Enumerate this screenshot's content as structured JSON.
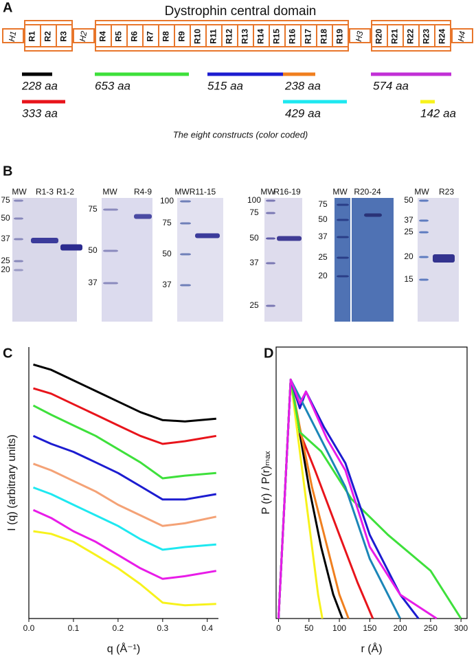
{
  "panel_labels": [
    "A",
    "B",
    "C",
    "D"
  ],
  "panel_a": {
    "title": "Dystrophin central domain",
    "domains": [
      "H1",
      "R1",
      "R2",
      "R3",
      "H2",
      "R4",
      "R5",
      "R6",
      "R7",
      "R8",
      "R9",
      "R10",
      "R11",
      "R12",
      "R13",
      "R14",
      "R15",
      "R16",
      "R17",
      "R18",
      "R19",
      "H3",
      "R20",
      "R21",
      "R22",
      "R23",
      "R24",
      "H4"
    ],
    "constructs": [
      {
        "label": "228 aa",
        "color": "#000000"
      },
      {
        "label": "333 aa",
        "color": "#e8141b"
      },
      {
        "label": "653 aa",
        "color": "#3ee03b"
      },
      {
        "label": "515 aa",
        "color": "#1c1cd0"
      },
      {
        "label": "238 aa",
        "color": "#f07f1e"
      },
      {
        "label": "429 aa",
        "color": "#1ee8f0"
      },
      {
        "label": "574 aa",
        "color": "#c12fd6"
      },
      {
        "label": "142 aa",
        "color": "#f7f21c"
      }
    ],
    "caption": "The eight constructs (color coded)"
  },
  "panel_b": {
    "gels": [
      {
        "lanes": [
          "MW",
          "R1-3",
          "R1-2"
        ],
        "mw": [
          "75",
          "50",
          "37",
          "25",
          "20"
        ]
      },
      {
        "lanes": [
          "MW",
          "R4-9"
        ],
        "mw": [
          "75",
          "50",
          "37"
        ]
      },
      {
        "lanes": [
          "MW",
          "R11-15"
        ],
        "mw": [
          "100",
          "75",
          "50",
          "37"
        ]
      },
      {
        "lanes": [
          "MW",
          "R16-19"
        ],
        "mw": [
          "100",
          "75",
          "50",
          "37",
          "25"
        ]
      },
      {
        "lanes": [
          "MW",
          "R20-24"
        ],
        "mw": [
          "75",
          "50",
          "37",
          "25",
          "20"
        ]
      },
      {
        "lanes": [
          "MW",
          "R23"
        ],
        "mw": [
          "50",
          "37",
          "25",
          "20",
          "15"
        ]
      }
    ]
  },
  "chart_data": [
    {
      "type": "line",
      "x_label": "q (Å⁻¹)",
      "y_label": "I (q) (arbitrary units)",
      "x": [
        0.01,
        0.05,
        0.1,
        0.15,
        0.2,
        0.25,
        0.3,
        0.35,
        0.42
      ],
      "xlim": [
        0,
        0.425
      ],
      "ylim": [
        0,
        10
      ],
      "xticks": [
        {
          "value": 0,
          "label": "0.0"
        },
        0.1,
        0.2,
        0.3,
        0.4
      ],
      "frame": false,
      "series": [
        {
          "color": "#000000",
          "values": [
            9.6,
            9.4,
            9.0,
            8.6,
            8.2,
            7.8,
            7.5,
            7.45,
            7.55
          ]
        },
        {
          "color": "#e8141b",
          "values": [
            8.7,
            8.5,
            8.1,
            7.7,
            7.3,
            6.9,
            6.6,
            6.7,
            6.9
          ]
        },
        {
          "color": "#3ee03b",
          "values": [
            8.05,
            7.7,
            7.3,
            6.9,
            6.4,
            5.9,
            5.3,
            5.4,
            5.5
          ]
        },
        {
          "color": "#1c1cd0",
          "values": [
            6.9,
            6.6,
            6.3,
            5.9,
            5.5,
            5.0,
            4.5,
            4.5,
            4.7
          ]
        },
        {
          "color": "#f4a276",
          "values": [
            5.85,
            5.6,
            5.2,
            4.8,
            4.3,
            3.9,
            3.5,
            3.6,
            3.85
          ]
        },
        {
          "color": "#1ee8f0",
          "values": [
            4.95,
            4.7,
            4.3,
            3.9,
            3.5,
            3.0,
            2.6,
            2.7,
            2.8
          ]
        },
        {
          "color": "#e81ce8",
          "values": [
            4.1,
            3.8,
            3.3,
            2.9,
            2.4,
            1.9,
            1.5,
            1.6,
            1.8
          ]
        },
        {
          "color": "#f7f21c",
          "values": [
            3.3,
            3.2,
            2.9,
            2.4,
            1.9,
            1.3,
            0.6,
            0.5,
            0.55
          ]
        }
      ]
    },
    {
      "type": "line",
      "x_label": "r (Å)",
      "y_label": "P (r) / P(r)ₘₐₓ",
      "xlim": [
        -4,
        310
      ],
      "ylim": [
        0,
        1.05
      ],
      "xticks": [
        0,
        50,
        100,
        150,
        200,
        250,
        300
      ],
      "frame": true,
      "series": [
        {
          "color": "#000000",
          "x": [
            0,
            20,
            30,
            50,
            70,
            90,
            105
          ],
          "values": [
            0,
            1,
            0.85,
            0.55,
            0.3,
            0.1,
            0
          ]
        },
        {
          "color": "#e8141b",
          "x": [
            0,
            20,
            35,
            60,
            100,
            130,
            155
          ],
          "values": [
            0,
            1,
            0.78,
            0.62,
            0.35,
            0.15,
            0
          ]
        },
        {
          "color": "#f07f1e",
          "x": [
            0,
            20,
            35,
            55,
            80,
            100,
            115
          ],
          "values": [
            0,
            1,
            0.8,
            0.55,
            0.3,
            0.1,
            0
          ]
        },
        {
          "color": "#f7f21c",
          "x": [
            0,
            20,
            35,
            50,
            65,
            72
          ],
          "values": [
            0,
            1,
            0.7,
            0.4,
            0.1,
            0
          ]
        },
        {
          "color": "#3ee03b",
          "x": [
            0,
            20,
            35,
            70,
            120,
            180,
            250,
            300
          ],
          "values": [
            0,
            1,
            0.78,
            0.7,
            0.5,
            0.35,
            0.2,
            0
          ]
        },
        {
          "color": "#1c1cd0",
          "x": [
            0,
            20,
            35,
            45,
            75,
            110,
            150,
            200,
            230
          ],
          "values": [
            0,
            1,
            0.88,
            0.95,
            0.8,
            0.65,
            0.35,
            0.1,
            0
          ]
        },
        {
          "color": "#1b86b8",
          "x": [
            0,
            20,
            40,
            70,
            110,
            150,
            200
          ],
          "values": [
            0,
            1,
            0.9,
            0.75,
            0.55,
            0.25,
            0
          ]
        },
        {
          "color": "#e81ce8",
          "x": [
            0,
            20,
            35,
            45,
            80,
            110,
            150,
            200,
            260
          ],
          "values": [
            0,
            1,
            0.9,
            0.95,
            0.75,
            0.62,
            0.3,
            0.1,
            0
          ]
        }
      ]
    }
  ]
}
